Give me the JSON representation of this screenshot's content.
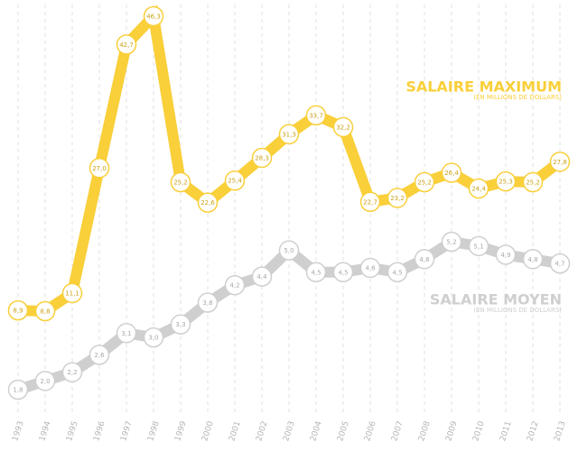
{
  "chart_data": {
    "type": "line",
    "categories": [
      "1993",
      "1994",
      "1995",
      "1996",
      "1997",
      "1998",
      "1999",
      "2000",
      "2001",
      "2002",
      "2003",
      "2004",
      "2005",
      "2006",
      "2007",
      "2008",
      "2009",
      "2010",
      "2011",
      "2012",
      "2013"
    ],
    "series": [
      {
        "name": "SALAIRE MAXIMUM",
        "unit": "(EN MILLIONS DE DOLLARS)",
        "color": "#f9cf3a",
        "values": [
          8.9,
          8.8,
          11.1,
          27.0,
          42.7,
          46.3,
          25.2,
          22.6,
          25.4,
          28.3,
          31.3,
          33.7,
          32.2,
          22.7,
          23.2,
          25.2,
          26.4,
          24.4,
          25.3,
          25.2,
          27.8
        ],
        "value_labels": [
          "8,9",
          "8,8",
          "11,1",
          "27,0",
          "42,7",
          "46,3",
          "25,2",
          "22,6",
          "25,4",
          "28,3",
          "31,3",
          "33,7",
          "32,2",
          "22,7",
          "23,2",
          "25,2",
          "26,4",
          "24,4",
          "25,3",
          "25,2",
          "27,8"
        ]
      },
      {
        "name": "SALAIRE MOYEN",
        "unit": "(EN MILLIONS DE DOLLARS)",
        "color": "#cfcfcf",
        "values": [
          1.8,
          2.0,
          2.2,
          2.6,
          3.1,
          3.0,
          3.3,
          3.8,
          4.2,
          4.4,
          5.0,
          4.5,
          4.5,
          4.6,
          4.5,
          4.8,
          5.2,
          5.1,
          4.9,
          4.8,
          4.7
        ],
        "value_labels": [
          "1,8",
          "2,0",
          "2,2",
          "2,6",
          "3,1",
          "3,0",
          "3,3",
          "3,8",
          "4,2",
          "4,4",
          "5,0",
          "4,5",
          "4,5",
          "4,6",
          "4,5",
          "4,8",
          "5,2",
          "5,1",
          "4,9",
          "4,8",
          "4,7"
        ]
      }
    ]
  }
}
